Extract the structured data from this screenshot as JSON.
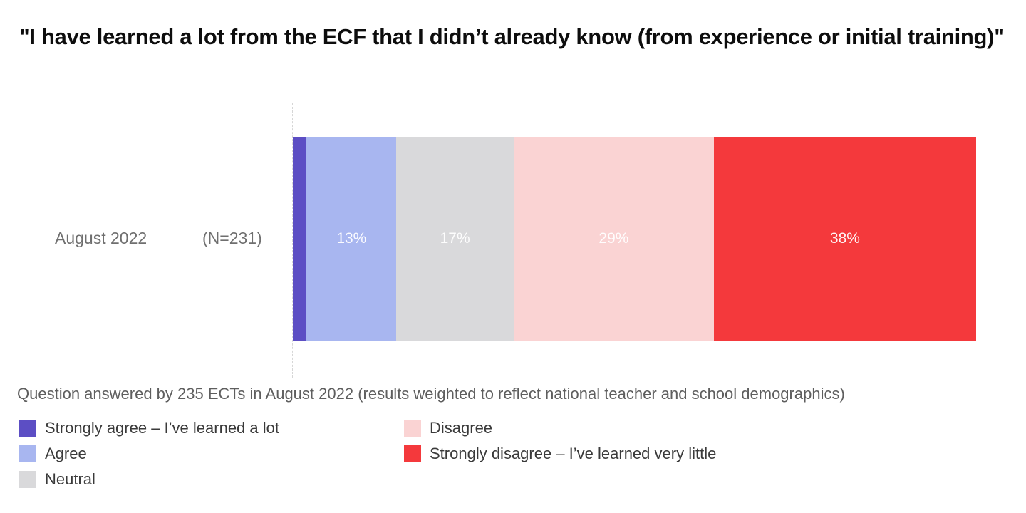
{
  "title": "\"I have learned a lot from the ECF that I didn’t already know (from experience or initial training)\"",
  "row": {
    "label": "August 2022",
    "n_label": "(N=231)"
  },
  "footnote": "Question answered by 235 ECTs in August 2022 (results weighted to reflect national teacher and school demographics)",
  "colors": {
    "strongly_agree": "#5C4EC4",
    "agree": "#A8B6F0",
    "neutral": "#D9D9DB",
    "disagree": "#FAD3D3",
    "strongly_disagree": "#F4393C",
    "bar_value_text": "#FFFFFF",
    "dashed_baseline": "#D6D6D6"
  },
  "chart_data": {
    "type": "bar",
    "orientation": "horizontal",
    "stacked": true,
    "categories": [
      "August 2022 (N=231)"
    ],
    "series": [
      {
        "name": "Strongly agree – I’ve learned a lot",
        "values": [
          2
        ],
        "color": "#5C4EC4",
        "bar_label": ""
      },
      {
        "name": "Agree",
        "values": [
          13
        ],
        "color": "#A8B6F0",
        "bar_label": "13%"
      },
      {
        "name": "Neutral",
        "values": [
          17
        ],
        "color": "#D9D9DB",
        "bar_label": "17%"
      },
      {
        "name": "Disagree",
        "values": [
          29
        ],
        "color": "#FAD3D3",
        "bar_label": "29%"
      },
      {
        "name": "Strongly disagree – I’ve learned very little",
        "values": [
          38
        ],
        "color": "#F4393C",
        "bar_label": "38%"
      }
    ],
    "xlim": [
      0,
      100
    ],
    "grid": false,
    "legend_position": "bottom-left, two columns",
    "title": "\"I have learned a lot from the ECF that I didn’t already know (from experience or initial training)\"",
    "xlabel": "",
    "ylabel": ""
  },
  "legend": {
    "columns": [
      {
        "items": [
          {
            "label": "Strongly agree – I’ve learned a lot",
            "color": "#5C4EC4"
          },
          {
            "label": "Agree",
            "color": "#A8B6F0"
          },
          {
            "label": "Neutral",
            "color": "#D9D9DB"
          }
        ]
      },
      {
        "items": [
          {
            "label": "Disagree",
            "color": "#FAD3D3"
          },
          {
            "label": "Strongly disagree – I’ve learned very little",
            "color": "#F4393C"
          }
        ]
      }
    ]
  }
}
